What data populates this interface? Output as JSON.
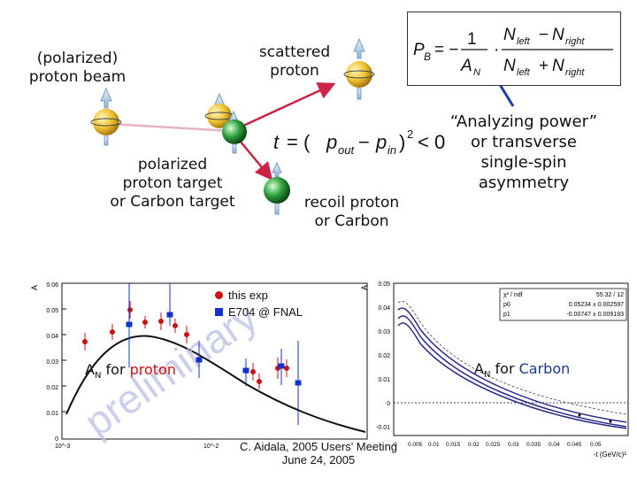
{
  "labels": {
    "beam": "(polarized)\nproton beam",
    "scattered": "scattered\nproton",
    "target": "polarized\nproton target\nor Carbon target",
    "recoil": "recoil proton\nor Carbon",
    "analyzing": "“Analyzing power”\nor transverse\nsingle-spin\nasymmetry",
    "t_formula": "t = (p_out − p_in)² < 0",
    "pb_formula": "P_B = −(1/A_N)·(N_left − N_right)/(N_left + N_right)"
  },
  "left_plot": {
    "y_axis_label": "A_N",
    "y_ticks": [
      "0.06",
      "0.05",
      "0.04",
      "0.03",
      "0.02",
      "0.01",
      "0"
    ],
    "x_ticks": [
      "10^-3",
      "10^-2"
    ],
    "caption_prefix": "A",
    "caption_sub": "N",
    "caption_for": " for ",
    "caption_particle": "proton",
    "watermark": "preliminary"
  },
  "legend": {
    "item1": "this exp",
    "item2": "E704 @ FNAL"
  },
  "right_plot": {
    "y_axis_label": "A_N",
    "y_ticks": [
      "0.05",
      "0.04",
      "0.03",
      "0.02",
      "0.01",
      "0",
      "-0.01"
    ],
    "x_ticks": [
      "0",
      "0.005",
      "0.01",
      "0.015",
      "0.02",
      "0.025",
      "0.03",
      "0.035",
      "0.04",
      "0.045",
      "0.05"
    ],
    "x_axis_label": "-t (GeV/c)²",
    "caption_prefix": "A",
    "caption_sub": "N",
    "caption_for": " for ",
    "caption_particle": "Carbon",
    "fit_box": {
      "row1": [
        "χ² / ndf",
        "55.32 / 12"
      ],
      "row2": [
        "p0",
        "0.05234 ± 0.002597"
      ],
      "row3": [
        "p1",
        "-0.00747 ± 0.009193"
      ]
    }
  },
  "footer": {
    "line1": "C. Aidala, 2005 Users' Meeting",
    "line2": "June 24, 2005"
  },
  "colors": {
    "red_points": "#cc1111",
    "blue_points": "#1133cc",
    "arrow": "#cc2244",
    "carbon_text": "#1a3a8a",
    "proton_text": "#cc1111"
  }
}
